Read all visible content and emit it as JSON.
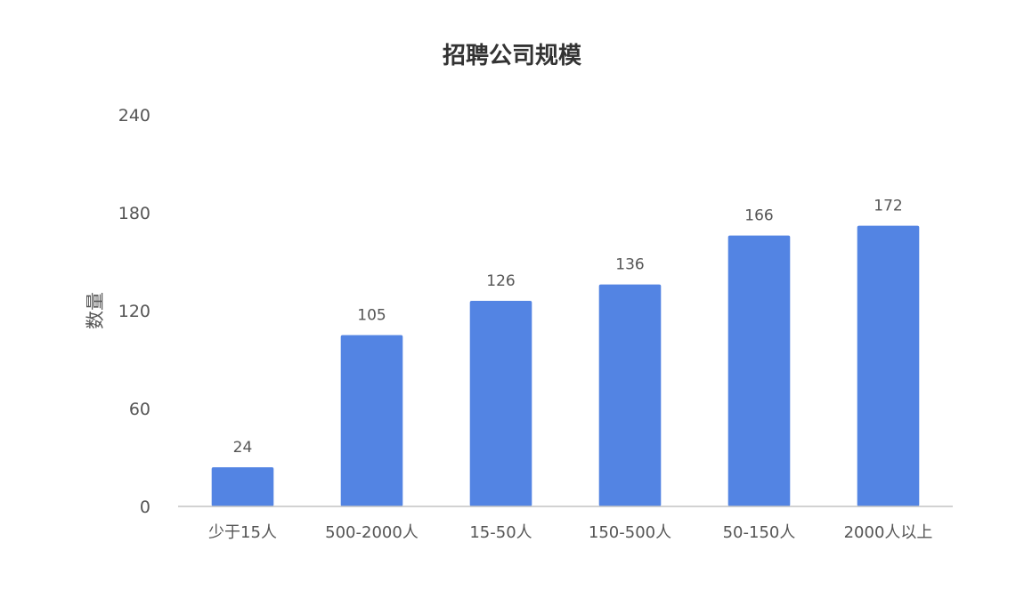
{
  "chart_data": {
    "type": "bar",
    "title": "招聘公司规模",
    "xlabel": "",
    "ylabel": "数量",
    "categories": [
      "少于15人",
      "500-2000人",
      "15-50人",
      "150-500人",
      "50-150人",
      "2000人以上"
    ],
    "values": [
      24,
      105,
      126,
      136,
      166,
      172
    ],
    "yticks": [
      0,
      60,
      120,
      180,
      240
    ],
    "ylim": [
      0,
      240
    ],
    "grid": false,
    "legend": "none",
    "bar_color": "#5384e3",
    "axis_color": "#c4c4c4"
  }
}
